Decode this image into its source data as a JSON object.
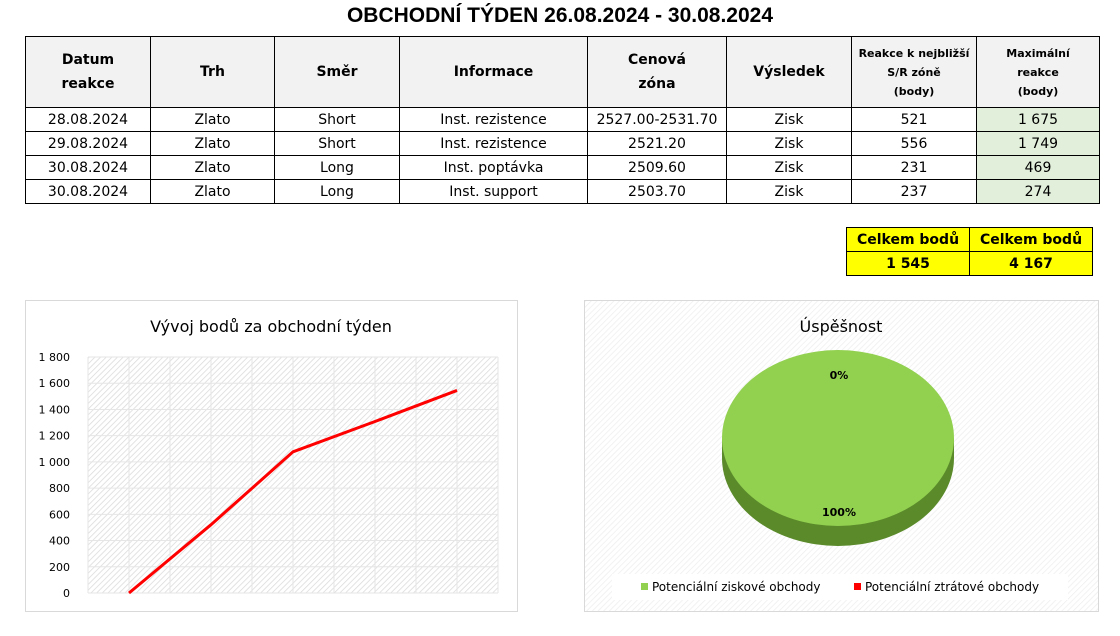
{
  "title": "OBCHODNÍ TÝDEN 26.08.2024 - 30.08.2024",
  "table": {
    "headers": [
      [
        "Datum",
        "reakce"
      ],
      [
        "Trh"
      ],
      [
        "Směr"
      ],
      [
        "Informace"
      ],
      [
        "Cenová",
        "zóna"
      ],
      [
        "Výsledek"
      ],
      [
        "Reakce k nejbližší",
        "S/R zóně",
        "(body)"
      ],
      [
        "Maximální",
        "reakce",
        "(body)"
      ]
    ],
    "rows": [
      [
        "28.08.2024",
        "Zlato",
        "Short",
        "Inst. rezistence",
        "2527.00-2531.70",
        "Zisk",
        "521",
        "1 675"
      ],
      [
        "29.08.2024",
        "Zlato",
        "Short",
        "Inst. rezistence",
        "2521.20",
        "Zisk",
        "556",
        "1 749"
      ],
      [
        "30.08.2024",
        "Zlato",
        "Long",
        "Inst. poptávka",
        "2509.60",
        "Zisk",
        "231",
        "469"
      ],
      [
        "30.08.2024",
        "Zlato",
        "Long",
        "Inst. support",
        "2503.70",
        "Zisk",
        "237",
        "274"
      ]
    ]
  },
  "totals": [
    {
      "label": "Celkem bodů",
      "value": "1 545"
    },
    {
      "label": "Celkem bodů",
      "value": "4 167"
    }
  ],
  "colors": {
    "line": "#ff0000",
    "win": "#92d050",
    "loss": "#ff0000",
    "total_bg": "#ffff00",
    "max_bg": "#e2efda"
  },
  "chart_data": [
    {
      "type": "line",
      "title": "Vývoj bodů za obchodní týden",
      "ylim": [
        0,
        1800
      ],
      "yticks": [
        "1 800",
        "1 600",
        "1 400",
        "1 200",
        "1 000",
        "800",
        "600",
        "400",
        "200",
        "0"
      ],
      "x": [
        1,
        2,
        3,
        4,
        5
      ],
      "values": [
        0,
        521,
        1077,
        1308,
        1545
      ],
      "grid": true
    },
    {
      "type": "pie",
      "title": "Úspěšnost",
      "series": [
        {
          "name": "Potenciální ziskové obchody",
          "value": 100,
          "label": "100%"
        },
        {
          "name": "Potenciální ztrátové obchody",
          "value": 0,
          "label": "0%"
        }
      ],
      "legend": "bottom"
    }
  ]
}
